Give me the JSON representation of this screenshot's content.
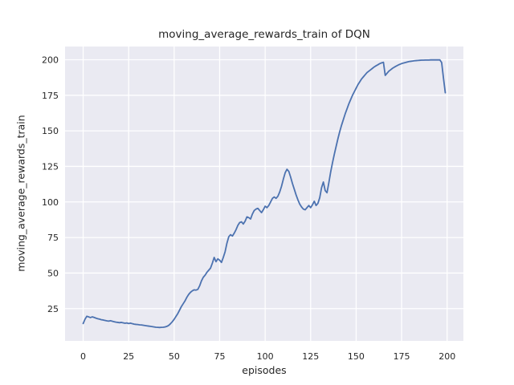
{
  "figure": {
    "background": "#FFFFFF"
  },
  "chart_data": {
    "type": "line",
    "title": "moving_average_rewards_train of DQN",
    "xlabel": "episodes",
    "ylabel": "moving_average_rewards_train",
    "legend": "none",
    "grid": true,
    "plot_bg": "#EAEAF2",
    "grid_color": "#FFFFFF",
    "text_color": "#262626",
    "line_color": "#4C72B0",
    "x_ticks": [
      0,
      25,
      50,
      75,
      100,
      125,
      150,
      175,
      200
    ],
    "y_ticks": [
      25,
      50,
      75,
      100,
      125,
      150,
      175,
      200
    ],
    "xlim": [
      -9.95,
      208.95
    ],
    "ylim": [
      2.3,
      209.3
    ],
    "series": [
      {
        "name": "moving_average_rewards_train",
        "x": {
          "from": 0,
          "to": 199,
          "step": 1
        },
        "y": [
          14.5,
          17.5,
          19.6,
          19.2,
          18.7,
          19.2,
          18.8,
          18.3,
          17.9,
          17.6,
          17.2,
          17.0,
          16.7,
          16.4,
          16.2,
          16.5,
          16.1,
          15.8,
          15.5,
          15.3,
          15.1,
          15.3,
          15.0,
          14.7,
          14.9,
          14.5,
          14.8,
          14.4,
          14.1,
          13.9,
          13.8,
          13.6,
          13.5,
          13.3,
          13.1,
          12.9,
          12.7,
          12.5,
          12.3,
          12.1,
          11.9,
          11.8,
          11.7,
          11.8,
          11.9,
          12.1,
          12.5,
          13.2,
          14.4,
          15.8,
          17.5,
          19.5,
          21.5,
          24.0,
          26.5,
          28.5,
          30.5,
          33.0,
          35.0,
          36.5,
          37.5,
          38.2,
          38.0,
          38.5,
          41.0,
          44.5,
          47.0,
          48.5,
          50.5,
          52.0,
          53.5,
          57.0,
          61.0,
          58.0,
          60.0,
          59.0,
          57.5,
          61.0,
          65.0,
          71.0,
          75.5,
          77.0,
          76.0,
          78.0,
          80.5,
          83.5,
          85.5,
          86.0,
          84.5,
          86.5,
          89.5,
          89.0,
          88.0,
          91.5,
          94.0,
          95.0,
          95.5,
          94.0,
          92.5,
          94.5,
          97.0,
          96.0,
          97.5,
          100.0,
          102.5,
          103.5,
          102.5,
          104.0,
          107.0,
          111.0,
          116.0,
          120.5,
          123.0,
          121.5,
          117.5,
          113.0,
          109.0,
          105.0,
          101.5,
          98.5,
          96.5,
          95.0,
          94.5,
          96.0,
          97.5,
          96.0,
          98.0,
          100.5,
          97.5,
          99.0,
          103.0,
          110.0,
          114.0,
          108.0,
          106.5,
          113.5,
          121.0,
          127.5,
          133.5,
          139.0,
          144.5,
          149.5,
          154.0,
          158.0,
          162.0,
          165.5,
          169.0,
          172.0,
          175.0,
          177.5,
          180.0,
          182.5,
          184.5,
          186.5,
          188.0,
          189.5,
          191.0,
          192.0,
          193.0,
          194.0,
          195.0,
          195.8,
          196.5,
          197.3,
          197.8,
          198.2,
          189.0,
          190.5,
          192.0,
          193.0,
          194.0,
          194.8,
          195.5,
          196.2,
          196.8,
          197.3,
          197.7,
          198.0,
          198.4,
          198.7,
          198.9,
          199.1,
          199.3,
          199.4,
          199.5,
          199.6,
          199.7,
          199.7,
          199.8,
          199.8,
          199.8,
          199.9,
          199.9,
          199.9,
          199.9,
          199.9,
          199.9,
          198.0,
          187.0,
          176.8
        ]
      }
    ]
  }
}
